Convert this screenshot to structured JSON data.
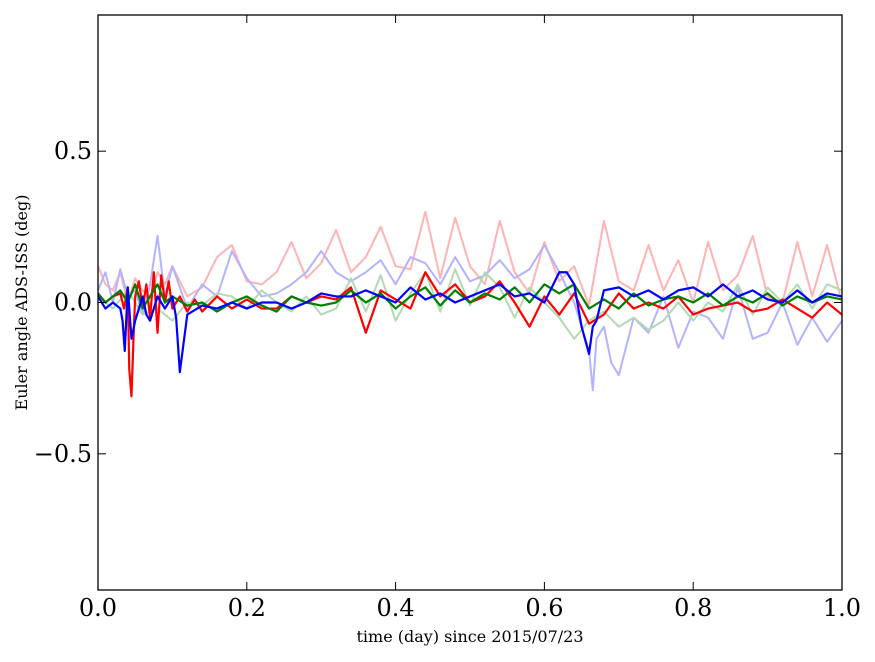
{
  "chart_data": {
    "type": "line",
    "title": "",
    "xlabel": "time (day) since 2015/07/23",
    "ylabel": "Euler angle ADS-ISS (deg)",
    "xlim": [
      0.0,
      1.0
    ],
    "ylim": [
      -0.95,
      0.95
    ],
    "x_ticks": [
      0.0,
      0.2,
      0.4,
      0.6,
      0.8,
      1.0
    ],
    "x_tick_labels": [
      "0.0",
      "0.2",
      "0.4",
      "0.6",
      "0.8",
      "1.0"
    ],
    "y_ticks": [
      0.5,
      0.0,
      -0.5
    ],
    "y_tick_labels": [
      "0.5",
      "0.0",
      "−0.5"
    ],
    "grid": false,
    "legend": "none",
    "series": [
      {
        "color": "#ffb3b3",
        "style": "faint",
        "x": [
          0.0,
          0.01,
          0.02,
          0.03,
          0.04,
          0.05,
          0.06,
          0.07,
          0.08,
          0.09,
          0.1,
          0.12,
          0.14,
          0.16,
          0.18,
          0.2,
          0.22,
          0.24,
          0.26,
          0.28,
          0.3,
          0.32,
          0.34,
          0.36,
          0.38,
          0.4,
          0.42,
          0.44,
          0.46,
          0.48,
          0.5,
          0.52,
          0.54,
          0.56,
          0.58,
          0.6,
          0.62,
          0.64,
          0.66,
          0.68,
          0.7,
          0.72,
          0.74,
          0.76,
          0.78,
          0.8,
          0.82,
          0.84,
          0.86,
          0.88,
          0.9,
          0.92,
          0.94,
          0.96,
          0.98,
          1.0
        ],
        "values": [
          0.12,
          0.06,
          0.04,
          0.1,
          0.0,
          0.08,
          0.04,
          0.02,
          0.1,
          0.06,
          0.12,
          0.02,
          0.05,
          0.15,
          0.19,
          0.07,
          0.06,
          0.1,
          0.2,
          0.08,
          0.13,
          0.24,
          0.1,
          0.15,
          0.25,
          0.12,
          0.11,
          0.3,
          0.08,
          0.28,
          0.12,
          0.06,
          0.27,
          0.1,
          0.03,
          0.2,
          0.07,
          0.12,
          -0.01,
          0.27,
          0.07,
          0.04,
          0.19,
          0.04,
          0.14,
          0.0,
          0.2,
          0.04,
          0.09,
          0.22,
          0.02,
          0.0,
          0.2,
          0.02,
          0.19,
          0.0
        ]
      },
      {
        "color": "#b3b3ff",
        "style": "faint",
        "x": [
          0.0,
          0.01,
          0.02,
          0.03,
          0.04,
          0.05,
          0.06,
          0.07,
          0.08,
          0.09,
          0.1,
          0.12,
          0.14,
          0.16,
          0.18,
          0.2,
          0.22,
          0.24,
          0.26,
          0.28,
          0.3,
          0.32,
          0.34,
          0.36,
          0.38,
          0.4,
          0.42,
          0.44,
          0.46,
          0.48,
          0.5,
          0.52,
          0.54,
          0.56,
          0.58,
          0.6,
          0.62,
          0.64,
          0.66,
          0.665,
          0.67,
          0.68,
          0.69,
          0.7,
          0.72,
          0.74,
          0.76,
          0.78,
          0.8,
          0.82,
          0.84,
          0.86,
          0.88,
          0.9,
          0.92,
          0.94,
          0.96,
          0.98,
          1.0
        ],
        "values": [
          0.04,
          0.1,
          0.0,
          0.11,
          0.02,
          0.04,
          -0.04,
          0.06,
          0.22,
          0.02,
          0.12,
          -0.02,
          0.06,
          0.02,
          0.17,
          0.08,
          0.02,
          0.03,
          0.06,
          0.1,
          0.17,
          0.1,
          0.07,
          0.1,
          0.14,
          0.06,
          0.15,
          0.13,
          0.06,
          0.15,
          0.07,
          0.09,
          0.14,
          0.08,
          0.11,
          0.19,
          0.1,
          0.0,
          -0.16,
          -0.29,
          -0.12,
          -0.08,
          -0.2,
          -0.24,
          -0.05,
          -0.1,
          0.02,
          -0.15,
          -0.03,
          -0.05,
          -0.12,
          0.05,
          -0.12,
          -0.1,
          0.0,
          -0.14,
          -0.05,
          -0.13,
          -0.06
        ]
      },
      {
        "color": "#b3d9b3",
        "style": "faint",
        "x": [
          0.0,
          0.02,
          0.04,
          0.06,
          0.08,
          0.1,
          0.12,
          0.14,
          0.16,
          0.18,
          0.2,
          0.22,
          0.24,
          0.26,
          0.28,
          0.3,
          0.32,
          0.34,
          0.36,
          0.38,
          0.4,
          0.42,
          0.44,
          0.46,
          0.48,
          0.5,
          0.52,
          0.54,
          0.56,
          0.58,
          0.6,
          0.62,
          0.64,
          0.66,
          0.68,
          0.7,
          0.72,
          0.74,
          0.76,
          0.78,
          0.8,
          0.82,
          0.84,
          0.86,
          0.88,
          0.9,
          0.92,
          0.94,
          0.96,
          0.98,
          1.0
        ],
        "values": [
          0.02,
          -0.02,
          0.04,
          -0.04,
          -0.02,
          -0.06,
          0.0,
          -0.01,
          0.03,
          0.02,
          -0.02,
          0.04,
          0.0,
          -0.03,
          0.02,
          -0.04,
          -0.02,
          0.08,
          -0.03,
          0.09,
          -0.06,
          0.03,
          0.1,
          -0.03,
          0.11,
          -0.01,
          0.1,
          0.05,
          -0.05,
          0.05,
          0.0,
          -0.05,
          -0.12,
          -0.06,
          -0.03,
          -0.08,
          -0.05,
          -0.09,
          -0.06,
          0.0,
          -0.06,
          0.0,
          -0.03,
          0.06,
          -0.04,
          0.05,
          0.0,
          0.06,
          -0.02,
          0.06,
          0.04
        ]
      },
      {
        "color": "#ff0000",
        "style": "solid",
        "x": [
          0.0,
          0.01,
          0.02,
          0.03,
          0.035,
          0.04,
          0.042,
          0.045,
          0.048,
          0.05,
          0.055,
          0.06,
          0.065,
          0.07,
          0.075,
          0.08,
          0.085,
          0.09,
          0.095,
          0.1,
          0.11,
          0.12,
          0.13,
          0.14,
          0.16,
          0.18,
          0.2,
          0.22,
          0.24,
          0.26,
          0.28,
          0.3,
          0.32,
          0.34,
          0.36,
          0.38,
          0.4,
          0.42,
          0.44,
          0.46,
          0.48,
          0.5,
          0.52,
          0.54,
          0.56,
          0.58,
          0.6,
          0.62,
          0.64,
          0.66,
          0.68,
          0.7,
          0.72,
          0.74,
          0.76,
          0.78,
          0.8,
          0.82,
          0.84,
          0.86,
          0.88,
          0.9,
          0.92,
          0.94,
          0.96,
          0.98,
          1.0
        ],
        "values": [
          0.03,
          0.0,
          0.02,
          0.03,
          -0.02,
          0.05,
          -0.22,
          -0.31,
          -0.1,
          0.02,
          0.07,
          -0.02,
          0.06,
          -0.05,
          0.1,
          -0.1,
          0.09,
          0.0,
          0.07,
          -0.02,
          0.02,
          -0.03,
          0.01,
          -0.03,
          0.02,
          -0.02,
          0.01,
          -0.02,
          -0.02,
          0.02,
          0.0,
          0.02,
          0.01,
          0.05,
          -0.1,
          0.04,
          0.01,
          -0.02,
          0.1,
          0.02,
          0.06,
          0.0,
          0.02,
          0.07,
          0.0,
          -0.08,
          0.02,
          -0.04,
          0.03,
          -0.07,
          -0.04,
          0.03,
          -0.02,
          0.0,
          -0.02,
          0.02,
          -0.04,
          -0.02,
          -0.01,
          0.0,
          -0.03,
          -0.02,
          0.01,
          -0.02,
          -0.05,
          0.0,
          -0.04
        ]
      },
      {
        "color": "#008000",
        "style": "solid",
        "x": [
          0.0,
          0.01,
          0.02,
          0.03,
          0.04,
          0.05,
          0.06,
          0.07,
          0.08,
          0.09,
          0.1,
          0.12,
          0.14,
          0.16,
          0.18,
          0.2,
          0.22,
          0.24,
          0.26,
          0.28,
          0.3,
          0.32,
          0.34,
          0.36,
          0.38,
          0.4,
          0.42,
          0.44,
          0.46,
          0.48,
          0.5,
          0.52,
          0.54,
          0.56,
          0.58,
          0.6,
          0.62,
          0.64,
          0.66,
          0.68,
          0.7,
          0.72,
          0.74,
          0.76,
          0.78,
          0.8,
          0.82,
          0.84,
          0.86,
          0.88,
          0.9,
          0.92,
          0.94,
          0.96,
          0.98,
          1.0
        ],
        "values": [
          0.03,
          0.0,
          0.02,
          0.04,
          0.0,
          0.06,
          -0.02,
          0.02,
          0.06,
          0.0,
          0.02,
          -0.01,
          0.0,
          -0.03,
          0.0,
          0.02,
          -0.01,
          -0.03,
          0.02,
          0.0,
          -0.01,
          0.0,
          0.04,
          0.0,
          0.03,
          -0.02,
          0.02,
          0.05,
          -0.01,
          0.04,
          0.0,
          0.03,
          0.01,
          0.05,
          0.0,
          0.06,
          0.03,
          0.06,
          -0.02,
          0.01,
          -0.02,
          0.03,
          -0.01,
          0.01,
          0.02,
          0.0,
          0.03,
          -0.01,
          0.02,
          0.0,
          0.03,
          -0.01,
          0.02,
          0.0,
          0.02,
          0.01
        ]
      },
      {
        "color": "#0000ff",
        "style": "solid",
        "x": [
          0.0,
          0.01,
          0.02,
          0.03,
          0.033,
          0.036,
          0.04,
          0.045,
          0.05,
          0.055,
          0.06,
          0.065,
          0.07,
          0.08,
          0.09,
          0.1,
          0.105,
          0.11,
          0.12,
          0.14,
          0.16,
          0.18,
          0.2,
          0.22,
          0.24,
          0.26,
          0.28,
          0.3,
          0.32,
          0.34,
          0.36,
          0.38,
          0.4,
          0.42,
          0.44,
          0.46,
          0.48,
          0.5,
          0.52,
          0.54,
          0.56,
          0.58,
          0.6,
          0.62,
          0.63,
          0.64,
          0.65,
          0.66,
          0.665,
          0.67,
          0.68,
          0.7,
          0.72,
          0.74,
          0.76,
          0.78,
          0.8,
          0.82,
          0.84,
          0.86,
          0.88,
          0.9,
          0.92,
          0.94,
          0.96,
          0.98,
          1.0
        ],
        "values": [
          0.02,
          -0.02,
          0.0,
          -0.02,
          -0.06,
          -0.16,
          0.05,
          -0.12,
          -0.06,
          -0.02,
          0.02,
          -0.04,
          -0.06,
          0.02,
          -0.02,
          0.02,
          -0.05,
          -0.23,
          -0.04,
          -0.01,
          -0.02,
          0.0,
          -0.02,
          0.0,
          0.0,
          -0.02,
          0.0,
          0.03,
          0.02,
          0.02,
          0.04,
          0.02,
          0.0,
          0.05,
          0.01,
          0.03,
          0.0,
          0.02,
          0.04,
          0.06,
          0.02,
          0.03,
          0.0,
          0.1,
          0.1,
          0.06,
          -0.08,
          -0.17,
          -0.08,
          -0.06,
          0.04,
          0.05,
          0.02,
          0.04,
          0.01,
          0.04,
          0.05,
          0.02,
          0.06,
          0.02,
          0.04,
          0.01,
          0.0,
          0.04,
          0.0,
          0.03,
          0.02
        ]
      }
    ]
  }
}
